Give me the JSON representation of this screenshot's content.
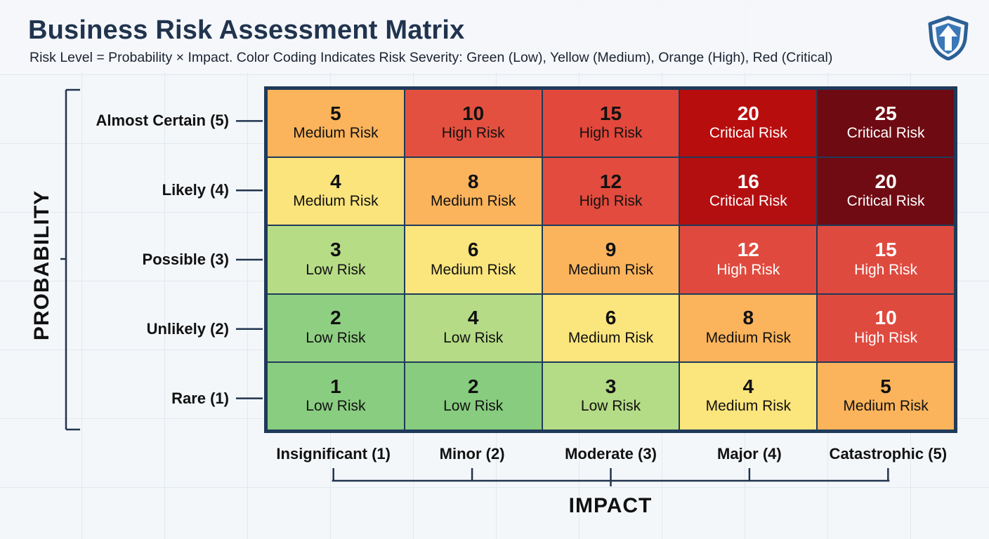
{
  "title": "Business Risk Assessment Matrix",
  "subtitle": "Risk Level = Probability × Impact. Color Coding Indicates Risk Severity: Green (Low), Yellow (Medium), Orange (High), Red (Critical)",
  "logo_icon": "shield-arrow-icon",
  "chart_data": {
    "type": "heatmap",
    "xlabel": "IMPACT",
    "ylabel": "PROBABILITY",
    "x_categories": [
      "Insignificant (1)",
      "Minor (2)",
      "Moderate (3)",
      "Major (4)",
      "Catastrophic (5)"
    ],
    "y_categories": [
      "Almost Certain (5)",
      "Likely (4)",
      "Possible (3)",
      "Unlikely (2)",
      "Rare (1)"
    ],
    "rows": [
      [
        {
          "value": 5,
          "label": "Medium Risk",
          "color": "#fbb45c",
          "text_color": "#111111"
        },
        {
          "value": 10,
          "label": "High Risk",
          "color": "#e4503f",
          "text_color": "#111111"
        },
        {
          "value": 15,
          "label": "High Risk",
          "color": "#e2483b",
          "text_color": "#111111"
        },
        {
          "value": 20,
          "label": "Critical Risk",
          "color": "#b80d0d",
          "text_color": "#ffffff"
        },
        {
          "value": 25,
          "label": "Critical Risk",
          "color": "#6e0a12",
          "text_color": "#ffffff"
        }
      ],
      [
        {
          "value": 4,
          "label": "Medium Risk",
          "color": "#fbe47c",
          "text_color": "#111111"
        },
        {
          "value": 8,
          "label": "Medium Risk",
          "color": "#fbb45c",
          "text_color": "#111111"
        },
        {
          "value": 12,
          "label": "High Risk",
          "color": "#e24b3d",
          "text_color": "#111111"
        },
        {
          "value": 16,
          "label": "Critical Risk",
          "color": "#b40f10",
          "text_color": "#ffffff"
        },
        {
          "value": 20,
          "label": "Critical Risk",
          "color": "#700b13",
          "text_color": "#ffffff"
        }
      ],
      [
        {
          "value": 3,
          "label": "Low Risk",
          "color": "#b7dc86",
          "text_color": "#111111"
        },
        {
          "value": 6,
          "label": "Medium Risk",
          "color": "#fbe57d",
          "text_color": "#111111"
        },
        {
          "value": 9,
          "label": "Medium Risk",
          "color": "#fbb45c",
          "text_color": "#111111"
        },
        {
          "value": 12,
          "label": "High Risk",
          "color": "#e04a3e",
          "text_color": "#ffffff"
        },
        {
          "value": 15,
          "label": "High Risk",
          "color": "#df4a3f",
          "text_color": "#ffffff"
        }
      ],
      [
        {
          "value": 2,
          "label": "Low Risk",
          "color": "#8fcf82",
          "text_color": "#111111"
        },
        {
          "value": 4,
          "label": "Low Risk",
          "color": "#b5db86",
          "text_color": "#111111"
        },
        {
          "value": 6,
          "label": "Medium Risk",
          "color": "#fbe57d",
          "text_color": "#111111"
        },
        {
          "value": 8,
          "label": "Medium Risk",
          "color": "#fbb45c",
          "text_color": "#111111"
        },
        {
          "value": 10,
          "label": "High Risk",
          "color": "#df4a3f",
          "text_color": "#ffffff"
        }
      ],
      [
        {
          "value": 1,
          "label": "Low Risk",
          "color": "#89cd80",
          "text_color": "#111111"
        },
        {
          "value": 2,
          "label": "Low Risk",
          "color": "#88cc7f",
          "text_color": "#111111"
        },
        {
          "value": 3,
          "label": "Low Risk",
          "color": "#b4db86",
          "text_color": "#111111"
        },
        {
          "value": 4,
          "label": "Medium Risk",
          "color": "#fbe57d",
          "text_color": "#111111"
        },
        {
          "value": 5,
          "label": "Medium Risk",
          "color": "#fbb45c",
          "text_color": "#111111"
        }
      ]
    ]
  }
}
